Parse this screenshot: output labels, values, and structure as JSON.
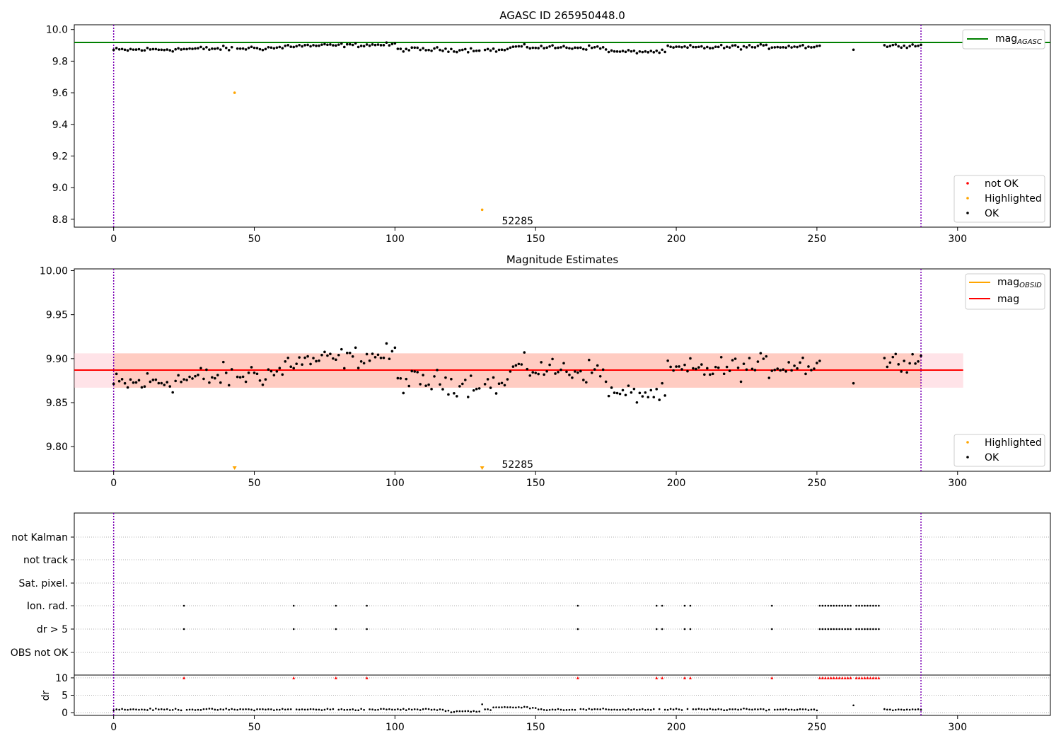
{
  "chart_data": [
    {
      "type": "scatter",
      "title": "AGASC ID 265950448.0",
      "xlim": [
        -14,
        333
      ],
      "ylim": [
        8.75,
        10.03
      ],
      "xticks": [
        0,
        50,
        100,
        150,
        200,
        250,
        300
      ],
      "yticks": [
        8.8,
        9.0,
        9.2,
        9.4,
        9.6,
        9.8,
        10.0
      ],
      "ytick_labels": [
        "8.8",
        "9.0",
        "9.2",
        "9.4",
        "9.6",
        "9.8",
        "10.0"
      ],
      "vlines": [
        0,
        287
      ],
      "hline": {
        "y": 9.918,
        "color": "#008000"
      },
      "annotation": {
        "text": "52285",
        "x": 138,
        "y": 8.79
      },
      "highlighted": [
        {
          "x": 43,
          "y": 9.6
        },
        {
          "x": 131,
          "y": 8.86
        }
      ],
      "ok_model": {
        "n": 287,
        "gap": [
          252,
          273
        ],
        "extra_x": [
          263
        ],
        "segments": [
          {
            "x0": 0,
            "x1": 60,
            "y0": 9.87,
            "y1": 9.885,
            "noise": 0.022
          },
          {
            "x0": 60,
            "x1": 100,
            "y0": 9.895,
            "y1": 9.905,
            "noise": 0.018
          },
          {
            "x0": 100,
            "x1": 140,
            "y0": 9.875,
            "y1": 9.87,
            "noise": 0.02
          },
          {
            "x0": 140,
            "x1": 175,
            "y0": 9.89,
            "y1": 9.885,
            "noise": 0.02
          },
          {
            "x0": 175,
            "x1": 196,
            "y0": 9.86,
            "y1": 9.86,
            "noise": 0.015
          },
          {
            "x0": 196,
            "x1": 252,
            "y0": 9.885,
            "y1": 9.895,
            "noise": 0.02
          },
          {
            "x0": 252,
            "x1": 287,
            "y0": 9.89,
            "y1": 9.9,
            "noise": 0.015
          }
        ]
      },
      "legend_top": [
        {
          "label": "mag",
          "sub": "AGASC",
          "color": "#008000"
        }
      ],
      "legend_bottom": [
        {
          "label": "not OK",
          "color": "#ff0000"
        },
        {
          "label": "Highlighted",
          "color": "#ffa500"
        },
        {
          "label": "OK",
          "color": "#000000"
        }
      ]
    },
    {
      "type": "scatter",
      "title": "Magnitude Estimates",
      "xlim": [
        -14,
        333
      ],
      "ylim": [
        9.772,
        10.002
      ],
      "xticks": [
        0,
        50,
        100,
        150,
        200,
        250,
        300
      ],
      "yticks": [
        9.8,
        9.85,
        9.9,
        9.95,
        10.0
      ],
      "ytick_labels": [
        "9.80",
        "9.85",
        "9.90",
        "9.95",
        "10.00"
      ],
      "vlines": [
        0,
        287
      ],
      "hline": {
        "y": 9.887,
        "color": "#ff0000",
        "x0": -14,
        "x1": 302
      },
      "band": {
        "y0": 9.867,
        "y1": 9.906,
        "x0": -14,
        "x1": 302
      },
      "annotation": {
        "text": "52285",
        "x": 138,
        "y": 9.78
      },
      "highlighted_markers": [
        43,
        131
      ],
      "legend_top": [
        {
          "label": "mag",
          "sub": "OBSID",
          "color": "#ffa500"
        },
        {
          "label": "mag",
          "sub": "",
          "color": "#ff0000"
        }
      ],
      "legend_bottom": [
        {
          "label": "Highlighted",
          "color": "#ffa500"
        },
        {
          "label": "OK",
          "color": "#000000"
        }
      ]
    },
    {
      "type": "scatter",
      "title": "",
      "xlim": [
        -14,
        333
      ],
      "xticks": [
        0,
        50,
        100,
        150,
        200,
        250,
        300
      ],
      "vlines": [
        0,
        287
      ],
      "flag_rows": [
        "not Kalman",
        "not track",
        "Sat. pixel.",
        "Ion. rad.",
        "dr > 5",
        "OBS not OK"
      ],
      "flag_points": {
        "Ion. rad.": [
          25,
          64,
          79,
          90,
          165,
          193,
          195,
          203,
          205,
          234,
          251,
          252,
          253,
          254,
          255,
          256,
          257,
          258,
          259,
          260,
          261,
          262,
          264,
          265,
          266,
          267,
          268,
          269,
          270,
          271,
          272
        ],
        "dr > 5": [
          25,
          64,
          79,
          90,
          165,
          193,
          195,
          203,
          205,
          234,
          251,
          252,
          253,
          254,
          255,
          256,
          257,
          258,
          259,
          260,
          261,
          262,
          264,
          265,
          266,
          267,
          268,
          269,
          270,
          271,
          272
        ]
      },
      "dr": {
        "ylabel": "dr",
        "ylim": [
          -0.8,
          10.8
        ],
        "yticks": [
          0,
          5,
          10
        ],
        "clipped_x": [
          25,
          64,
          79,
          90,
          165,
          193,
          195,
          203,
          205,
          234,
          251,
          252,
          253,
          254,
          255,
          256,
          257,
          258,
          259,
          260,
          261,
          262,
          264,
          265,
          266,
          267,
          268,
          269,
          270,
          271,
          272
        ],
        "spikes": [
          {
            "x": 131,
            "y": 2.4
          },
          {
            "x": 263,
            "y": 2.1
          }
        ],
        "base": 0.9
      }
    }
  ]
}
